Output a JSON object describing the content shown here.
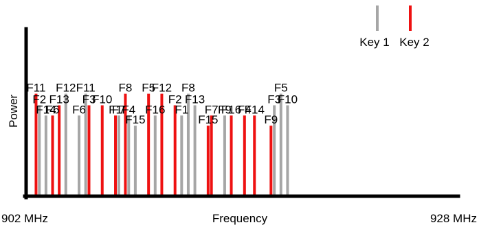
{
  "chart_data": {
    "type": "bar",
    "xlabel": "Frequency",
    "ylabel": "Power",
    "x_start_label": "902 MHz",
    "x_end_label": "928 MHz",
    "xlim": [
      902,
      928
    ],
    "ylim": [
      0,
      1
    ],
    "grid": false,
    "legend_position": "top-right",
    "legend": [
      {
        "name": "Key 1",
        "color": "#a6a6a6"
      },
      {
        "name": "Key 2",
        "color": "#ee1111"
      }
    ],
    "series": [
      {
        "name": "Key 1",
        "color": "#a6a6a6",
        "points": [
          {
            "label": "F2",
            "x": 902.8,
            "y": 0.62
          },
          {
            "label": "F14",
            "x": 903.2,
            "y": 0.55
          },
          {
            "label": "F12",
            "x": 904.4,
            "y": 0.7
          },
          {
            "label": "F6",
            "x": 905.2,
            "y": 0.55
          },
          {
            "label": "F11",
            "x": 905.6,
            "y": 0.7
          },
          {
            "label": "F7",
            "x": 907.6,
            "y": 0.55
          },
          {
            "label": "F4",
            "x": 908.2,
            "y": 0.55
          },
          {
            "label": "F15",
            "x": 908.6,
            "y": 0.48
          },
          {
            "label": "F16",
            "x": 909.8,
            "y": 0.55
          },
          {
            "label": "F1",
            "x": 911.4,
            "y": 0.55
          },
          {
            "label": "F8",
            "x": 911.8,
            "y": 0.7
          },
          {
            "label": "F13",
            "x": 912.2,
            "y": 0.62
          },
          {
            "label": "F9",
            "x": 914.0,
            "y": 0.55
          },
          {
            "label": "F3",
            "x": 917.0,
            "y": 0.62
          },
          {
            "label": "F5",
            "x": 917.4,
            "y": 0.7
          },
          {
            "label": "F10",
            "x": 917.8,
            "y": 0.62
          }
        ]
      },
      {
        "name": "Key 2",
        "color": "#ee1111",
        "points": [
          {
            "label": "F11",
            "x": 902.6,
            "y": 0.7
          },
          {
            "label": "F6",
            "x": 903.6,
            "y": 0.55
          },
          {
            "label": "F13",
            "x": 904.0,
            "y": 0.62
          },
          {
            "label": "F3",
            "x": 905.8,
            "y": 0.62
          },
          {
            "label": "F10",
            "x": 906.6,
            "y": 0.62
          },
          {
            "label": "F1",
            "x": 907.4,
            "y": 0.55
          },
          {
            "label": "F8",
            "x": 908.0,
            "y": 0.7
          },
          {
            "label": "F5",
            "x": 909.4,
            "y": 0.7
          },
          {
            "label": "F12",
            "x": 910.2,
            "y": 0.7
          },
          {
            "label": "F2",
            "x": 911.0,
            "y": 0.62
          },
          {
            "label": "F15",
            "x": 913.0,
            "y": 0.48
          },
          {
            "label": "F7",
            "x": 913.2,
            "y": 0.55
          },
          {
            "label": "F16",
            "x": 914.4,
            "y": 0.55
          },
          {
            "label": "F4",
            "x": 915.2,
            "y": 0.55
          },
          {
            "label": "F14",
            "x": 915.8,
            "y": 0.55
          },
          {
            "label": "F9",
            "x": 916.8,
            "y": 0.48
          }
        ]
      }
    ]
  }
}
